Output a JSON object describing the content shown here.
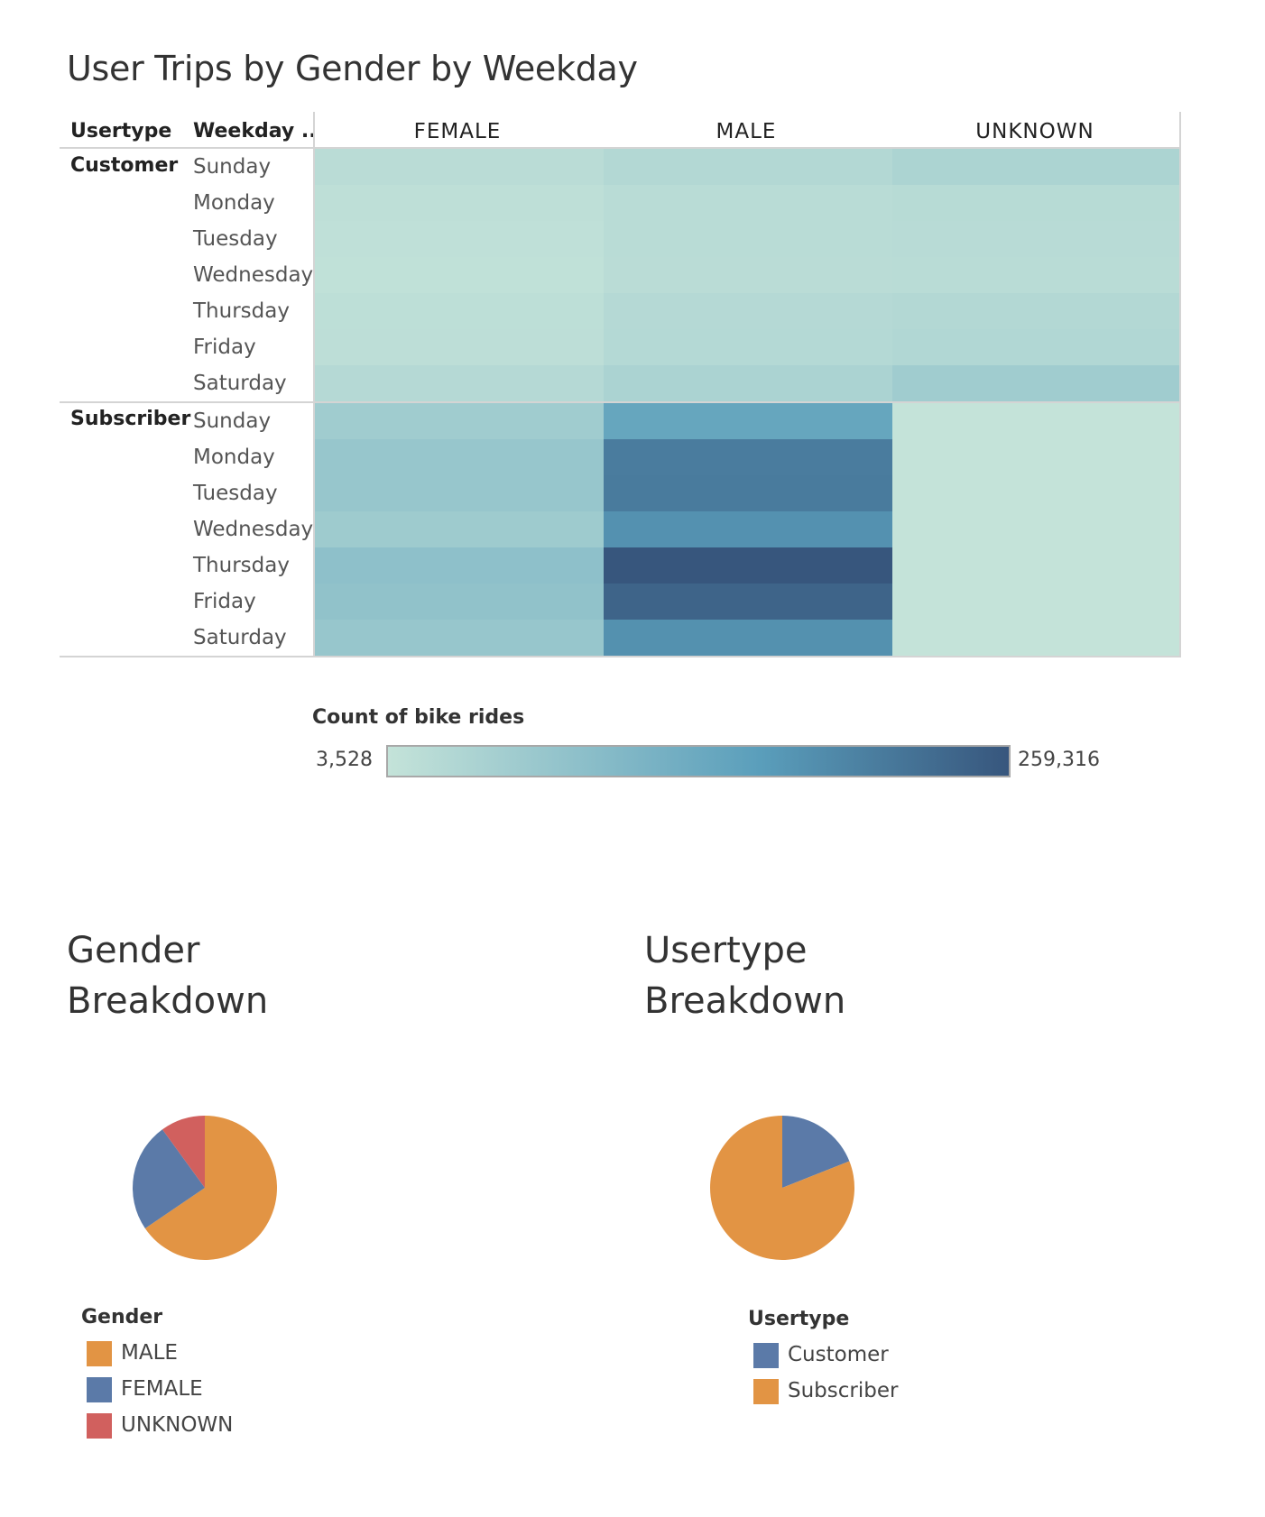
{
  "chart_data": [
    {
      "type": "heatmap",
      "title": "User Trips by Gender by Weekday",
      "row_headers": [
        "Usertype",
        "Weekday .."
      ],
      "columns": [
        "FEMALE",
        "MALE",
        "UNKNOWN"
      ],
      "groups": [
        {
          "usertype": "Customer",
          "rows": [
            {
              "day": "Sunday",
              "values": [
                18000,
                28000,
                38000
              ]
            },
            {
              "day": "Monday",
              "values": [
                12000,
                20000,
                22000
              ]
            },
            {
              "day": "Tuesday",
              "values": [
                11000,
                19000,
                21000
              ]
            },
            {
              "day": "Wednesday",
              "values": [
                9000,
                18000,
                20000
              ]
            },
            {
              "day": "Thursday",
              "values": [
                13000,
                25000,
                28000
              ]
            },
            {
              "day": "Friday",
              "values": [
                14000,
                26000,
                31000
              ]
            },
            {
              "day": "Saturday",
              "values": [
                25000,
                40000,
                55000
              ]
            }
          ]
        },
        {
          "usertype": "Subscriber",
          "rows": [
            {
              "day": "Sunday",
              "values": [
                55000,
                140000,
                3528
              ]
            },
            {
              "day": "Monday",
              "values": [
                68000,
                205000,
                3600
              ]
            },
            {
              "day": "Tuesday",
              "values": [
                68000,
                207000,
                3600
              ]
            },
            {
              "day": "Wednesday",
              "values": [
                58000,
                175000,
                3600
              ]
            },
            {
              "day": "Thursday",
              "values": [
                82000,
                259316,
                3700
              ]
            },
            {
              "day": "Friday",
              "values": [
                78000,
                240000,
                3700
              ]
            },
            {
              "day": "Saturday",
              "values": [
                68000,
                176000,
                3600
              ]
            }
          ]
        }
      ],
      "color_legend": {
        "title": "Count of bike rides",
        "min_label": "3,528",
        "max_label": "259,316",
        "min": 3528,
        "max": 259316
      },
      "colors": {
        "low": "#c4e3d9",
        "mid": "#5a9ebb",
        "high": "#37567d"
      }
    },
    {
      "type": "pie",
      "title": [
        "Gender",
        "Breakdown"
      ],
      "legend_title": "Gender",
      "slices": [
        {
          "label": "MALE",
          "value": 65.5,
          "color": "#e29444"
        },
        {
          "label": "FEMALE",
          "value": 24.5,
          "color": "#5b7aa8"
        },
        {
          "label": "UNKNOWN",
          "value": 10.0,
          "color": "#d1605e"
        }
      ]
    },
    {
      "type": "pie",
      "title": [
        "Usertype",
        "Breakdown"
      ],
      "legend_title": "Usertype",
      "slices": [
        {
          "label": "Subscriber",
          "value": 81.0,
          "color": "#e29444"
        },
        {
          "label": "Customer",
          "value": 19.0,
          "color": "#5b7aa8"
        }
      ]
    }
  ]
}
